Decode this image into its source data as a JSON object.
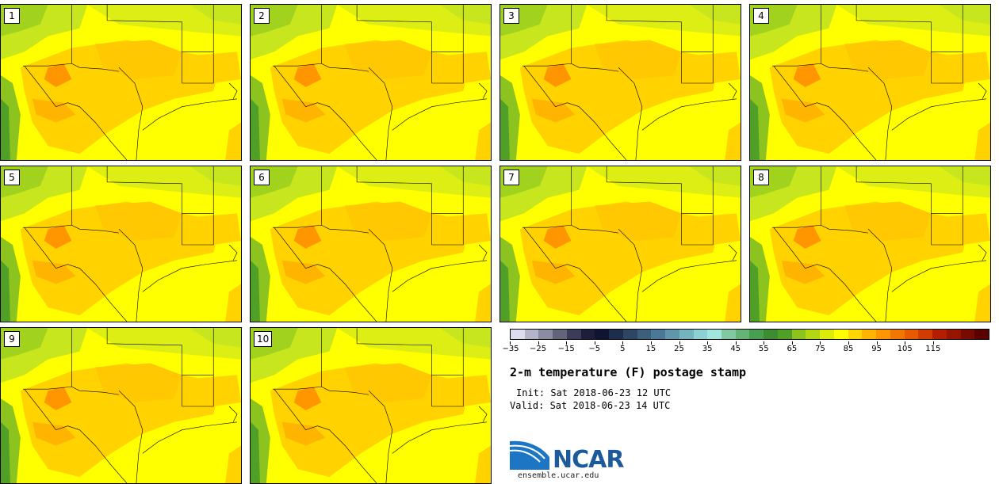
{
  "panels": [
    "1",
    "2",
    "3",
    "4",
    "5",
    "6",
    "7",
    "8",
    "9",
    "10"
  ],
  "colorbar": {
    "colors": [
      "#dcdcec",
      "#b4b4c8",
      "#8c8ca0",
      "#646478",
      "#3c3c5a",
      "#1e1e3c",
      "#0f1432",
      "#1e2d4b",
      "#2d4664",
      "#3c5f7d",
      "#4b7896",
      "#5f96aa",
      "#73b4be",
      "#8cd2d2",
      "#a0e6dc",
      "#82c8a0",
      "#64b478",
      "#46a050",
      "#3c8c32",
      "#50a028",
      "#8cc31e",
      "#b4d714",
      "#dceb0a",
      "#ffff00",
      "#ffd700",
      "#ffb400",
      "#ff9600",
      "#f07800",
      "#e65a00",
      "#d23c00",
      "#b41e00",
      "#961400",
      "#780a00",
      "#5a0000"
    ],
    "ticks": [
      "−35",
      "−25",
      "−15",
      "−5",
      "5",
      "15",
      "25",
      "35",
      "45",
      "55",
      "65",
      "75",
      "85",
      "95",
      "105",
      "115"
    ]
  },
  "title": "2-m temperature (F) postage stamp",
  "init": "Init: Sat 2018-06-23 12 UTC",
  "valid": "Valid: Sat 2018-06-23 14 UTC",
  "logo": {
    "text": "NCAR",
    "url": "ensemble.ucar.edu"
  }
}
